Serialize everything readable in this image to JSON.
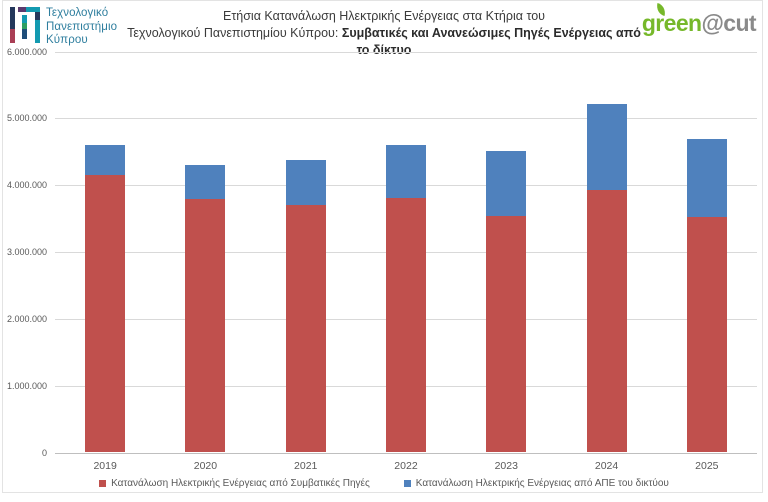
{
  "header": {
    "university_logo": {
      "line1": "Τεχνολογικό",
      "line2": "Πανεπιστήμιο",
      "line3": "Κύπρου"
    },
    "title": {
      "line1": "Ετήσια Κατανάλωση Ηλεκτρικής Ενέργειας στα Κτήρια του",
      "line2_regular": "Τεχνολογικού Πανεπιστημίου Κύπρου: ",
      "line2_bold": "Συμβατικές και Ανανεώσιμες Πηγές Ενέργειας από το δίκτυο"
    },
    "brand_logo": {
      "green_text": "green",
      "cut_text": "@cut"
    }
  },
  "colors": {
    "conventional_red": "#C0504D",
    "res_blue": "#4F81BD",
    "gridline": "#D9D9D9",
    "axis_line": "#BFBFBF",
    "tick_text": "#595959",
    "title_text": "#3B3B3B",
    "logo_teal": "#2E7E9E",
    "brand_green": "#76B82A",
    "brand_gray": "#8A8A8A"
  },
  "chart_data": {
    "type": "bar",
    "stacked": true,
    "title": "Ετήσια Κατανάλωση Ηλεκτρικής Ενέργειας στα Κτήρια του Τεχνολογικού Πανεπιστημίου Κύπρου: Συμβατικές και Ανανεώσιμες Πηγές Ενέργειας από το δίκτυο",
    "categories": [
      "2019",
      "2020",
      "2021",
      "2022",
      "2023",
      "2024",
      "2025"
    ],
    "series": [
      {
        "name": "Κατανάλωση Ηλεκτρικής Ενέργειας από Συμβατικές Πηγές",
        "color": "#C0504D",
        "values": [
          4150000,
          3790000,
          3700000,
          3800000,
          3530000,
          3920000,
          3520000
        ]
      },
      {
        "name": "Κατανάλωση Ηλεκτρικής Ενέργειας από ΑΠΕ του δικτύου",
        "color": "#4F81BD",
        "values": [
          450000,
          510000,
          670000,
          800000,
          980000,
          1280000,
          1160000
        ]
      }
    ],
    "totals": [
      4600000,
      4300000,
      4370000,
      4600000,
      4510000,
      5200000,
      4680000
    ],
    "y_ticks": [
      {
        "value": 0,
        "label": "0"
      },
      {
        "value": 1000000,
        "label": "1.000.000"
      },
      {
        "value": 2000000,
        "label": "2.000.000"
      },
      {
        "value": 3000000,
        "label": "3.000.000"
      },
      {
        "value": 4000000,
        "label": "4.000.000"
      },
      {
        "value": 5000000,
        "label": "5.000.000"
      },
      {
        "value": 6000000,
        "label": "6.000.000"
      }
    ],
    "ylim": [
      0,
      6000000
    ],
    "grid": true,
    "legend_position": "bottom"
  }
}
